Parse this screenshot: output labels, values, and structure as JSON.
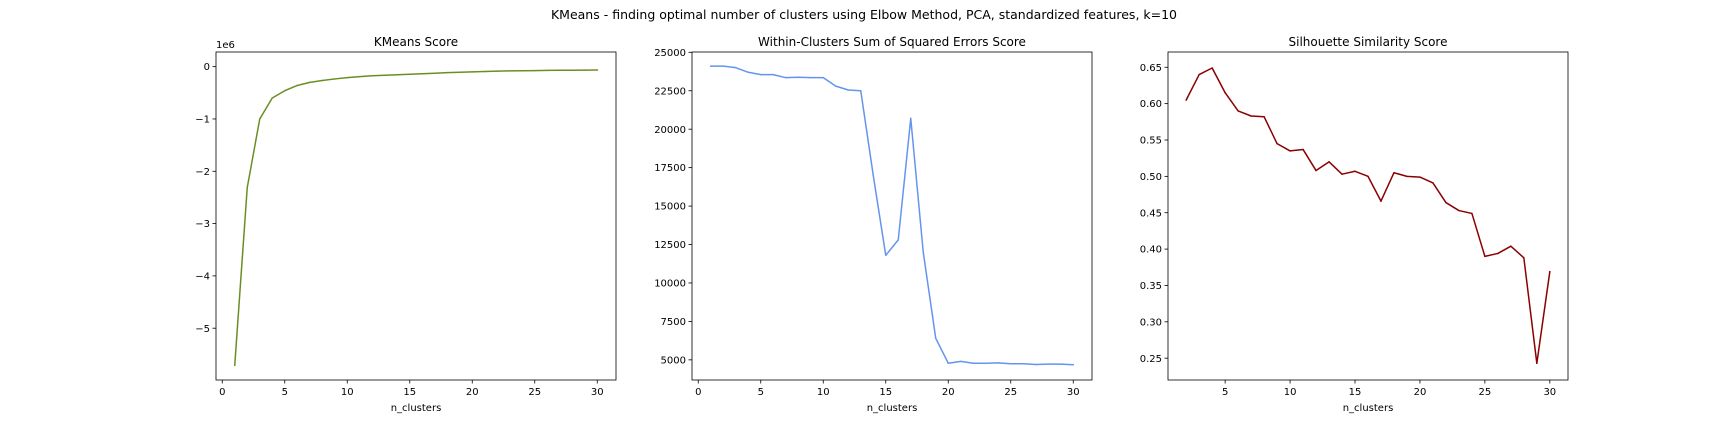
{
  "figure": {
    "suptitle": "KMeans - finding optimal number of clusters using Elbow Method, PCA, standardized features, k=10"
  },
  "chart_data": [
    {
      "type": "line",
      "title": "KMeans Score",
      "xlabel": "n_clusters",
      "ylabel": "",
      "y_offset_label": "1e6",
      "xlim": [
        -0.5,
        31.5
      ],
      "ylim": [
        -5.99,
        0.28
      ],
      "xticks": [
        0,
        5,
        10,
        15,
        20,
        25,
        30
      ],
      "xtick_labels": [
        "0",
        "5",
        "10",
        "15",
        "20",
        "25",
        "30"
      ],
      "yticks": [
        0,
        -1,
        -2,
        -3,
        -4,
        -5
      ],
      "ytick_labels": [
        "0",
        "−1",
        "−2",
        "−3",
        "−4",
        "−5"
      ],
      "color": "#6b8e23",
      "series": [
        {
          "x": [
            1,
            2,
            3,
            4,
            5,
            6,
            7,
            8,
            9,
            10,
            11,
            12,
            13,
            14,
            15,
            16,
            17,
            18,
            19,
            20,
            21,
            22,
            23,
            24,
            25,
            26,
            27,
            28,
            29,
            30
          ],
          "values": [
            -5.71,
            -2.31,
            -1.0,
            -0.6,
            -0.46,
            -0.36,
            -0.3,
            -0.265,
            -0.235,
            -0.21,
            -0.19,
            -0.175,
            -0.165,
            -0.155,
            -0.145,
            -0.135,
            -0.125,
            -0.115,
            -0.108,
            -0.1,
            -0.092,
            -0.085,
            -0.08,
            -0.078,
            -0.075,
            -0.072,
            -0.07,
            -0.068,
            -0.066,
            -0.064
          ]
        }
      ],
      "grid": false
    },
    {
      "type": "line",
      "title": "Within-Clusters Sum of Squared Errors Score",
      "xlabel": "n_clusters",
      "ylabel": "",
      "xlim": [
        -0.5,
        31.5
      ],
      "ylim": [
        3690,
        25020
      ],
      "xticks": [
        0,
        5,
        10,
        15,
        20,
        25,
        30
      ],
      "xtick_labels": [
        "0",
        "5",
        "10",
        "15",
        "20",
        "25",
        "30"
      ],
      "yticks": [
        5000,
        7500,
        10000,
        12500,
        15000,
        17500,
        20000,
        22500,
        25000
      ],
      "ytick_labels": [
        "5000",
        "7500",
        "10000",
        "12500",
        "15000",
        "17500",
        "20000",
        "22500",
        "25000"
      ],
      "color": "#6495ed",
      "series": [
        {
          "x": [
            1,
            2,
            3,
            4,
            5,
            6,
            7,
            8,
            9,
            10,
            11,
            12,
            13,
            14,
            15,
            16,
            17,
            18,
            19,
            20,
            21,
            22,
            23,
            24,
            25,
            26,
            27,
            28,
            29,
            30
          ],
          "values": [
            24100,
            24100,
            24000,
            23700,
            23550,
            23550,
            23350,
            23380,
            23350,
            23350,
            22800,
            22550,
            22500,
            17000,
            11800,
            12800,
            20700,
            12000,
            6400,
            4780,
            4900,
            4780,
            4780,
            4800,
            4750,
            4750,
            4700,
            4720,
            4720,
            4680
          ]
        }
      ],
      "grid": false
    },
    {
      "type": "line",
      "title": "Silhouette Similarity Score",
      "xlabel": "n_clusters",
      "ylabel": "",
      "xlim": [
        0.6,
        31.4
      ],
      "ylim": [
        0.22,
        0.671
      ],
      "xticks": [
        5,
        10,
        15,
        20,
        25,
        30
      ],
      "xtick_labels": [
        "5",
        "10",
        "15",
        "20",
        "25",
        "30"
      ],
      "yticks": [
        0.25,
        0.3,
        0.35,
        0.4,
        0.45,
        0.5,
        0.55,
        0.6,
        0.65
      ],
      "ytick_labels": [
        "0.25",
        "0.30",
        "0.35",
        "0.40",
        "0.45",
        "0.50",
        "0.55",
        "0.60",
        "0.65"
      ],
      "color": "#8b0000",
      "series": [
        {
          "x": [
            2,
            3,
            4,
            5,
            6,
            7,
            8,
            9,
            10,
            11,
            12,
            13,
            14,
            15,
            16,
            17,
            18,
            19,
            20,
            21,
            22,
            23,
            24,
            25,
            26,
            27,
            28,
            29,
            30
          ],
          "values": [
            0.605,
            0.64,
            0.649,
            0.615,
            0.59,
            0.583,
            0.582,
            0.545,
            0.535,
            0.537,
            0.508,
            0.52,
            0.503,
            0.507,
            0.5,
            0.466,
            0.505,
            0.5,
            0.499,
            0.491,
            0.464,
            0.453,
            0.449,
            0.39,
            0.394,
            0.404,
            0.388,
            0.243,
            0.369
          ]
        }
      ],
      "grid": false
    }
  ]
}
